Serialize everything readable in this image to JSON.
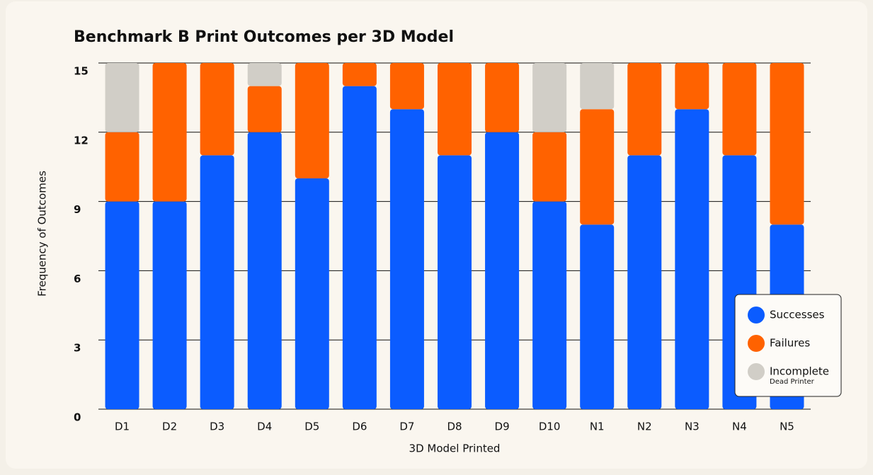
{
  "chart_data": {
    "type": "stacked_bar",
    "title": "Benchmark B Print Outcomes per 3D Model",
    "x_label": "3D Model Printed",
    "y_label": "Frequency of Outcomes",
    "categories": [
      "D1",
      "D2",
      "D3",
      "D4",
      "D5",
      "D6",
      "D7",
      "D8",
      "D9",
      "D10",
      "N1",
      "N2",
      "N3",
      "N4",
      "N5"
    ],
    "series": [
      {
        "name": "Successes",
        "color": "#0b5cff",
        "values": [
          9,
          9,
          11,
          12,
          10,
          14,
          13,
          11,
          12,
          9,
          8,
          11,
          13,
          11,
          8
        ]
      },
      {
        "name": "Failures",
        "color": "#ff6200",
        "values": [
          3,
          6,
          4,
          2,
          5,
          1,
          2,
          4,
          3,
          3,
          5,
          4,
          2,
          4,
          7
        ]
      },
      {
        "name": "Incomplete",
        "subtitle": "Dead Printer",
        "color": "#d1cec7",
        "values": [
          3,
          0,
          0,
          1,
          0,
          0,
          0,
          0,
          0,
          3,
          2,
          0,
          0,
          0,
          0
        ]
      }
    ],
    "ylim": [
      0,
      15
    ],
    "yticks": [
      0,
      3,
      6,
      9,
      12,
      15
    ],
    "grid": true,
    "legend": "lower right"
  }
}
